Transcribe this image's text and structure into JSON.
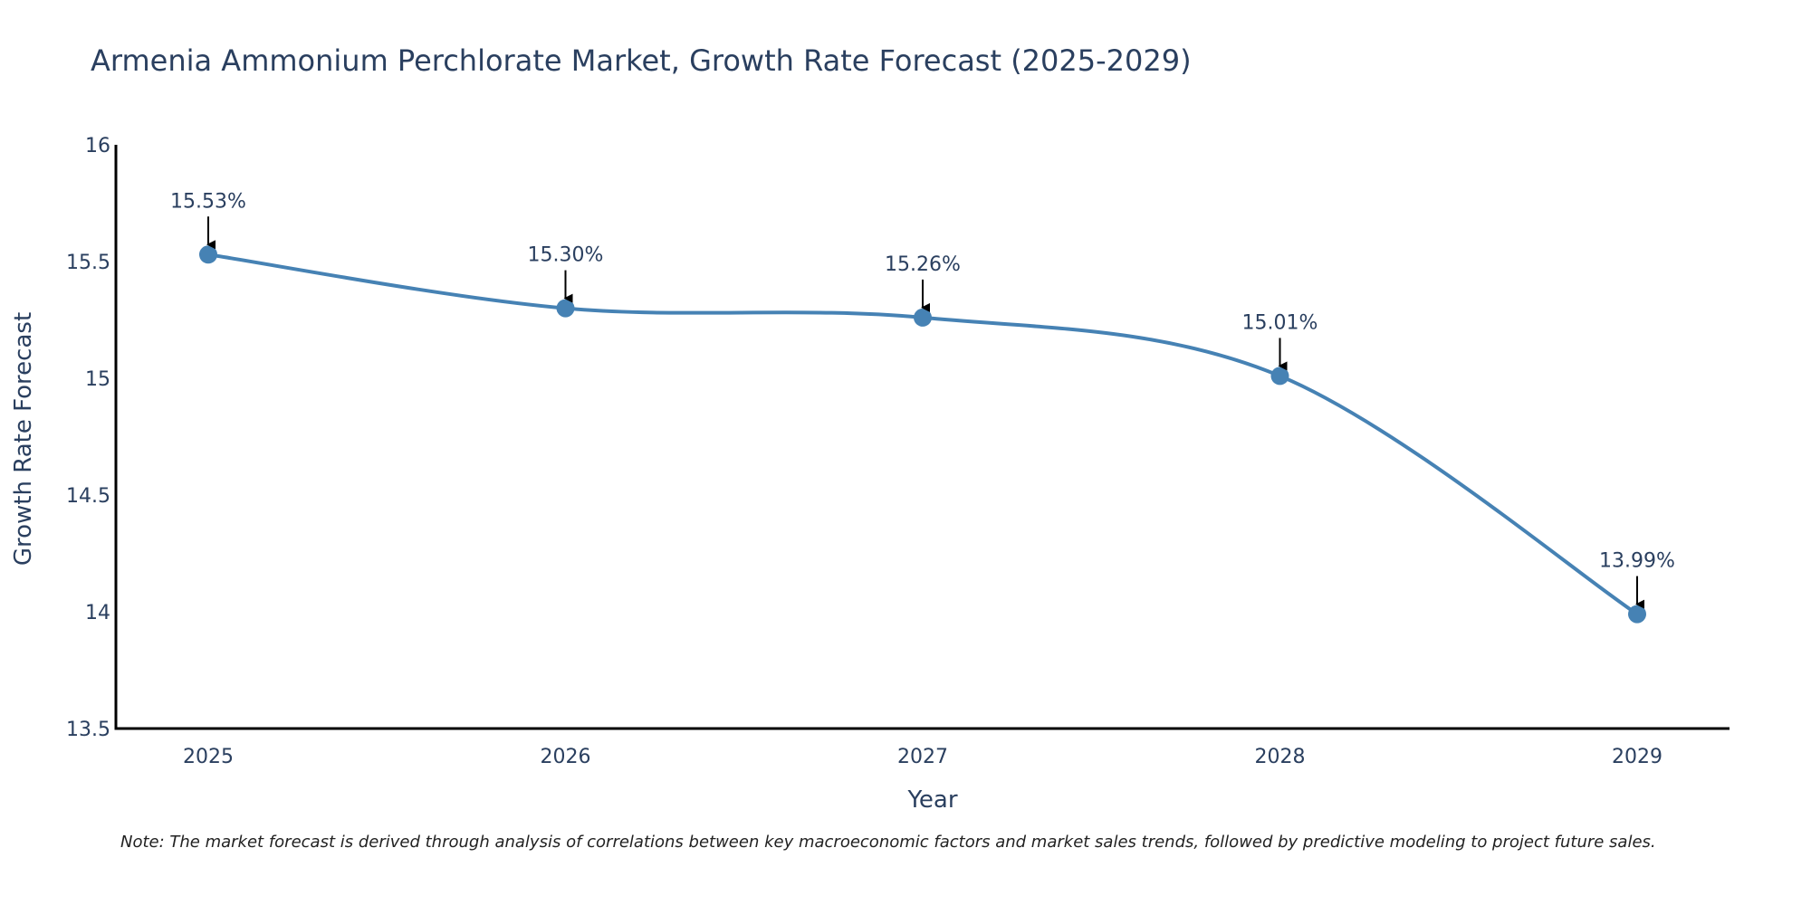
{
  "chart_data": {
    "type": "line",
    "title": "Armenia Ammonium Perchlorate Market, Growth Rate Forecast (2025-2029)",
    "xlabel": "Year",
    "ylabel": "Growth Rate Forecast",
    "categories": [
      "2025",
      "2026",
      "2027",
      "2028",
      "2029"
    ],
    "values": [
      15.53,
      15.3,
      15.26,
      15.01,
      13.99
    ],
    "data_labels": [
      "15.53%",
      "15.30%",
      "15.26%",
      "15.01%",
      "13.99%"
    ],
    "ylim": [
      13.5,
      16
    ],
    "yticks": [
      13.5,
      14,
      14.5,
      15,
      15.5,
      16
    ],
    "ytick_labels": [
      "13.5",
      "14",
      "14.5",
      "15",
      "15.5",
      "16"
    ],
    "grid": false,
    "line_color": "#4682b4",
    "note": "Note: The market forecast is derived through analysis of correlations between key macroeconomic factors and market sales trends, followed by predictive modeling to project future sales."
  }
}
